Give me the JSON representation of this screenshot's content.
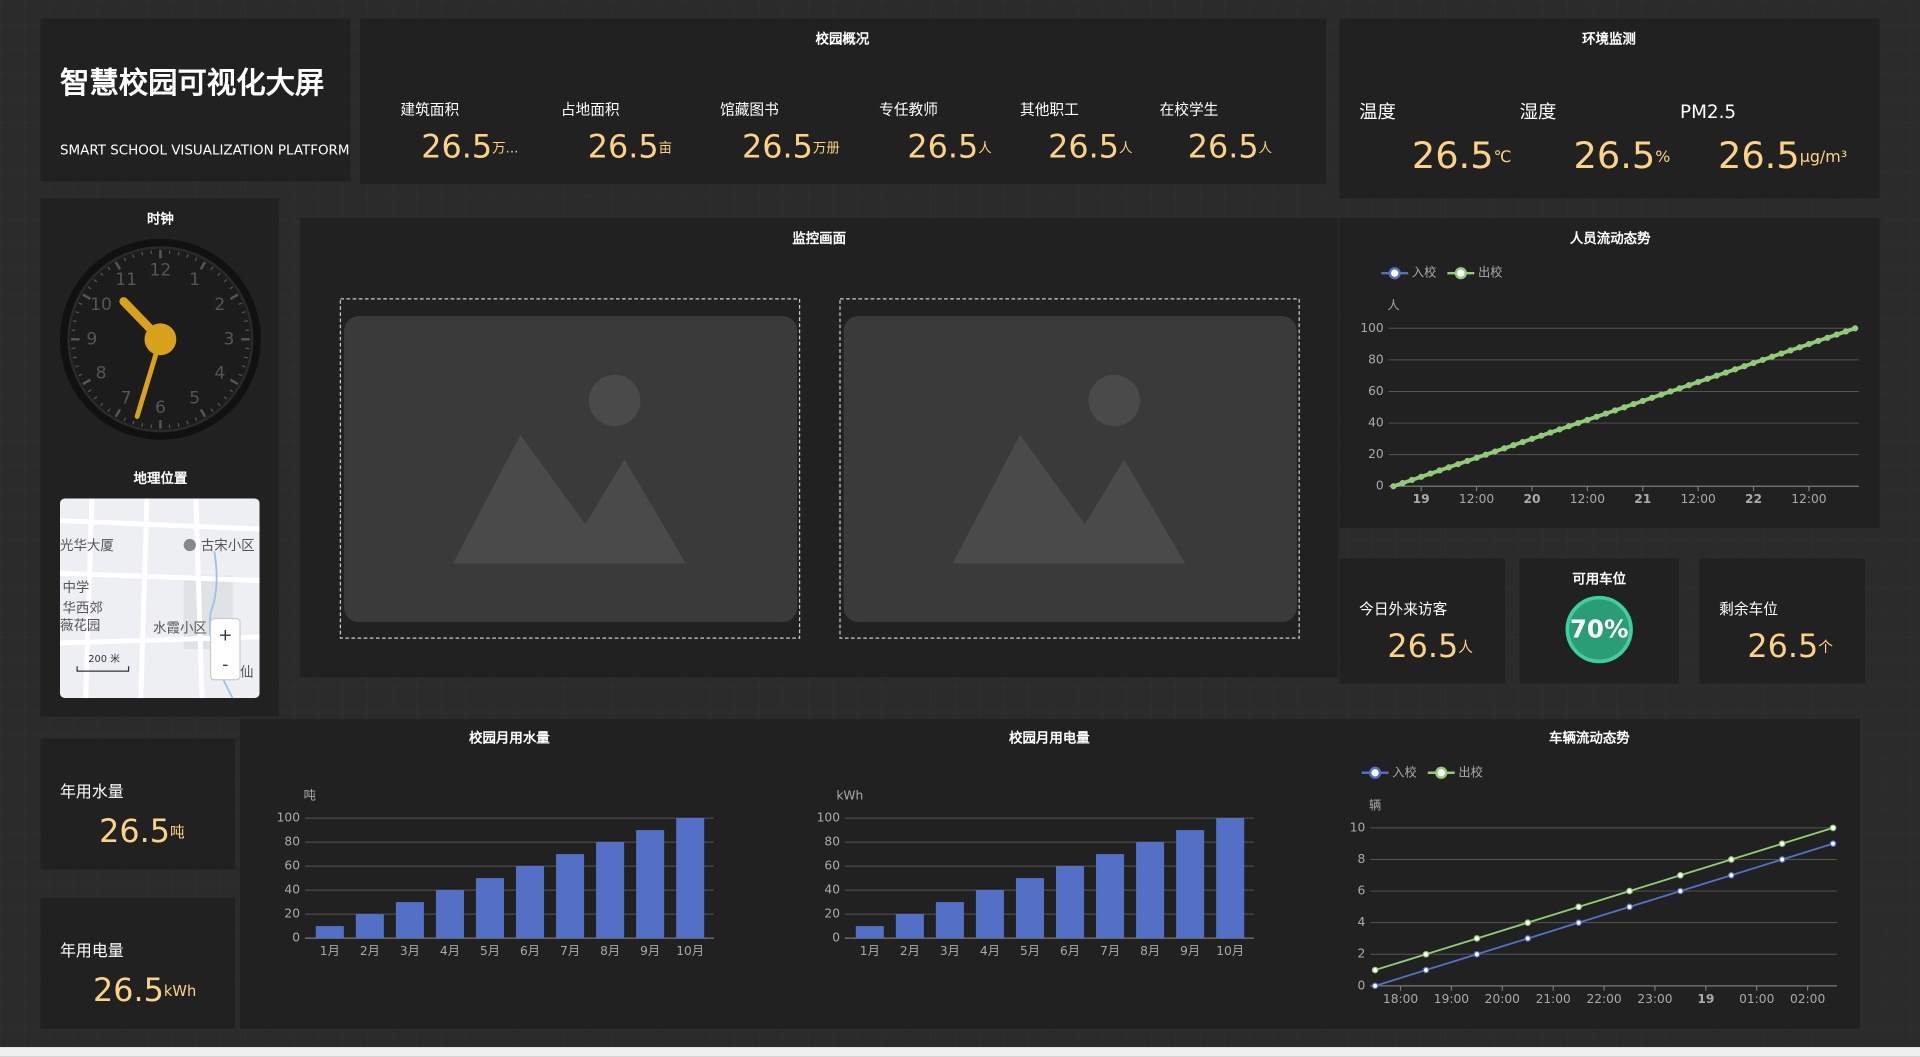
{
  "header": {
    "title": "智慧校园可视化大屏",
    "subtitle": "SMART SCHOOL VISUALIZATION PLATFORM"
  },
  "overview": {
    "title": "校园概况",
    "items": [
      {
        "label": "建筑面积",
        "value": 26.5,
        "unit": "万..."
      },
      {
        "label": "占地面积",
        "value": 26.5,
        "unit": "亩"
      },
      {
        "label": "馆藏图书",
        "value": 26.5,
        "unit": "万册"
      },
      {
        "label": "专任教师",
        "value": 26.5,
        "unit": "人"
      },
      {
        "label": "其他职工",
        "value": 26.5,
        "unit": "人"
      },
      {
        "label": "在校学生",
        "value": 26.5,
        "unit": "人"
      }
    ]
  },
  "environment": {
    "title": "环境监测",
    "items": [
      {
        "label": "温度",
        "value": 26.5,
        "unit": "℃"
      },
      {
        "label": "湿度",
        "value": 26.5,
        "unit": "%"
      },
      {
        "label": "PM2.5",
        "value": 26.5,
        "unit": "μg/m³"
      }
    ]
  },
  "clock": {
    "title": "时钟",
    "numbers": [
      "12",
      "1",
      "2",
      "3",
      "4",
      "5",
      "6",
      "7",
      "8",
      "9",
      "10",
      "11"
    ]
  },
  "map": {
    "title": "地理位置",
    "places": [
      "光华大厦",
      "古宋小区",
      "中学",
      "华西郊",
      "薇花园",
      "水霞小区",
      "仙"
    ],
    "scale": "200 米",
    "zoom_in": "+",
    "zoom_out": "-"
  },
  "monitor": {
    "title": "监控画面"
  },
  "visitors": {
    "label": "今日外来访客",
    "value": 26.5,
    "unit": "人"
  },
  "parking": {
    "title": "可用车位",
    "value": "70%"
  },
  "remaining": {
    "label": "剩余车位",
    "value": 26.5,
    "unit": "个"
  },
  "water_year": {
    "label": "年用水量",
    "value": 26.5,
    "unit": "吨"
  },
  "power_year": {
    "label": "年用电量",
    "value": 26.5,
    "unit": "kWh"
  },
  "chart_data": [
    {
      "type": "line",
      "title": "人员流动态势",
      "y_label": "人",
      "legend": "top-left",
      "grid": true,
      "x": [
        -6,
        -4,
        -2,
        0,
        2,
        4,
        6,
        8,
        10,
        12,
        14,
        16,
        18,
        20,
        22,
        24,
        26,
        28,
        30,
        32,
        34,
        36,
        38,
        40,
        42,
        44,
        46,
        48,
        50,
        52,
        54,
        56,
        58,
        60,
        62,
        64,
        66,
        68,
        70,
        72,
        74,
        76,
        78,
        80,
        82,
        84,
        86,
        88,
        90,
        92,
        94
      ],
      "series": [
        {
          "name": "入校",
          "color": "#5470c6",
          "values": [
            0,
            2,
            4,
            6,
            8,
            10,
            12,
            14,
            16,
            18,
            20,
            22,
            24,
            26,
            28,
            30,
            32,
            34,
            36,
            38,
            40,
            42,
            44,
            46,
            48,
            50,
            52,
            54,
            56,
            58,
            60,
            62,
            64,
            66,
            68,
            70,
            72,
            74,
            76,
            78,
            80,
            82,
            84,
            86,
            88,
            90,
            92,
            94,
            96,
            98,
            100
          ]
        },
        {
          "name": "出校",
          "color": "#91cc75",
          "values": [
            0,
            2,
            4,
            6,
            8,
            10,
            12,
            14,
            16,
            18,
            20,
            22,
            24,
            26,
            28,
            30,
            32,
            34,
            36,
            38,
            40,
            42,
            44,
            46,
            48,
            50,
            52,
            54,
            56,
            58,
            60,
            62,
            64,
            66,
            68,
            70,
            72,
            74,
            76,
            78,
            80,
            82,
            84,
            86,
            88,
            90,
            92,
            94,
            96,
            98,
            100
          ]
        }
      ],
      "xlim": [
        -6,
        94
      ],
      "xticks": [
        {
          "value": 0,
          "label": "19"
        },
        {
          "value": 12,
          "label": "12:00"
        },
        {
          "value": 24,
          "label": "20"
        },
        {
          "value": 36,
          "label": "12:00"
        },
        {
          "value": 48,
          "label": "21"
        },
        {
          "value": 60,
          "label": "12:00"
        },
        {
          "value": 72,
          "label": "22"
        },
        {
          "value": 84,
          "label": "12:00"
        }
      ],
      "ylim": [
        0,
        100
      ],
      "yticks": [
        0,
        20,
        40,
        60,
        80,
        100
      ]
    },
    {
      "type": "bar",
      "title": "校园月用水量",
      "y_label": "吨",
      "grid": true,
      "color": "#5470c6",
      "categories": [
        "1月",
        "2月",
        "3月",
        "4月",
        "5月",
        "6月",
        "7月",
        "8月",
        "9月",
        "10月"
      ],
      "values": [
        10,
        20,
        30,
        40,
        50,
        60,
        70,
        80,
        90,
        100
      ],
      "ylim": [
        0,
        100
      ],
      "yticks": [
        0,
        20,
        40,
        60,
        80,
        100
      ]
    },
    {
      "type": "bar",
      "title": "校园月用电量",
      "y_label": "kWh",
      "grid": true,
      "color": "#5470c6",
      "categories": [
        "1月",
        "2月",
        "3月",
        "4月",
        "5月",
        "6月",
        "7月",
        "8月",
        "9月",
        "10月"
      ],
      "values": [
        10,
        20,
        30,
        40,
        50,
        60,
        70,
        80,
        90,
        100
      ],
      "ylim": [
        0,
        100
      ],
      "yticks": [
        0,
        20,
        40,
        60,
        80,
        100
      ]
    },
    {
      "type": "line",
      "title": "车辆流动态势",
      "y_label": "辆",
      "legend": "top-left",
      "grid": true,
      "x": [
        17.5,
        18.5,
        19.5,
        20.5,
        21.5,
        22.5,
        23.5,
        24.5,
        25.5,
        26.5
      ],
      "series": [
        {
          "name": "入校",
          "color": "#5470c6",
          "values": [
            0,
            1,
            2,
            3,
            4,
            5,
            6,
            7,
            8,
            9
          ]
        },
        {
          "name": "出校",
          "color": "#91cc75",
          "values": [
            1,
            2,
            3,
            4,
            5,
            6,
            7,
            8,
            9,
            10
          ]
        }
      ],
      "xlim": [
        17.5,
        26.5
      ],
      "xticks": [
        {
          "value": 18,
          "label": "18:00"
        },
        {
          "value": 19,
          "label": "19:00"
        },
        {
          "value": 20,
          "label": "20:00"
        },
        {
          "value": 21,
          "label": "21:00"
        },
        {
          "value": 22,
          "label": "22:00"
        },
        {
          "value": 23,
          "label": "23:00"
        },
        {
          "value": 24,
          "label": "19"
        },
        {
          "value": 25,
          "label": "01:00"
        },
        {
          "value": 26,
          "label": "02:00"
        }
      ],
      "ylim": [
        0,
        10
      ],
      "yticks": [
        0,
        2,
        4,
        6,
        8,
        10
      ]
    }
  ]
}
